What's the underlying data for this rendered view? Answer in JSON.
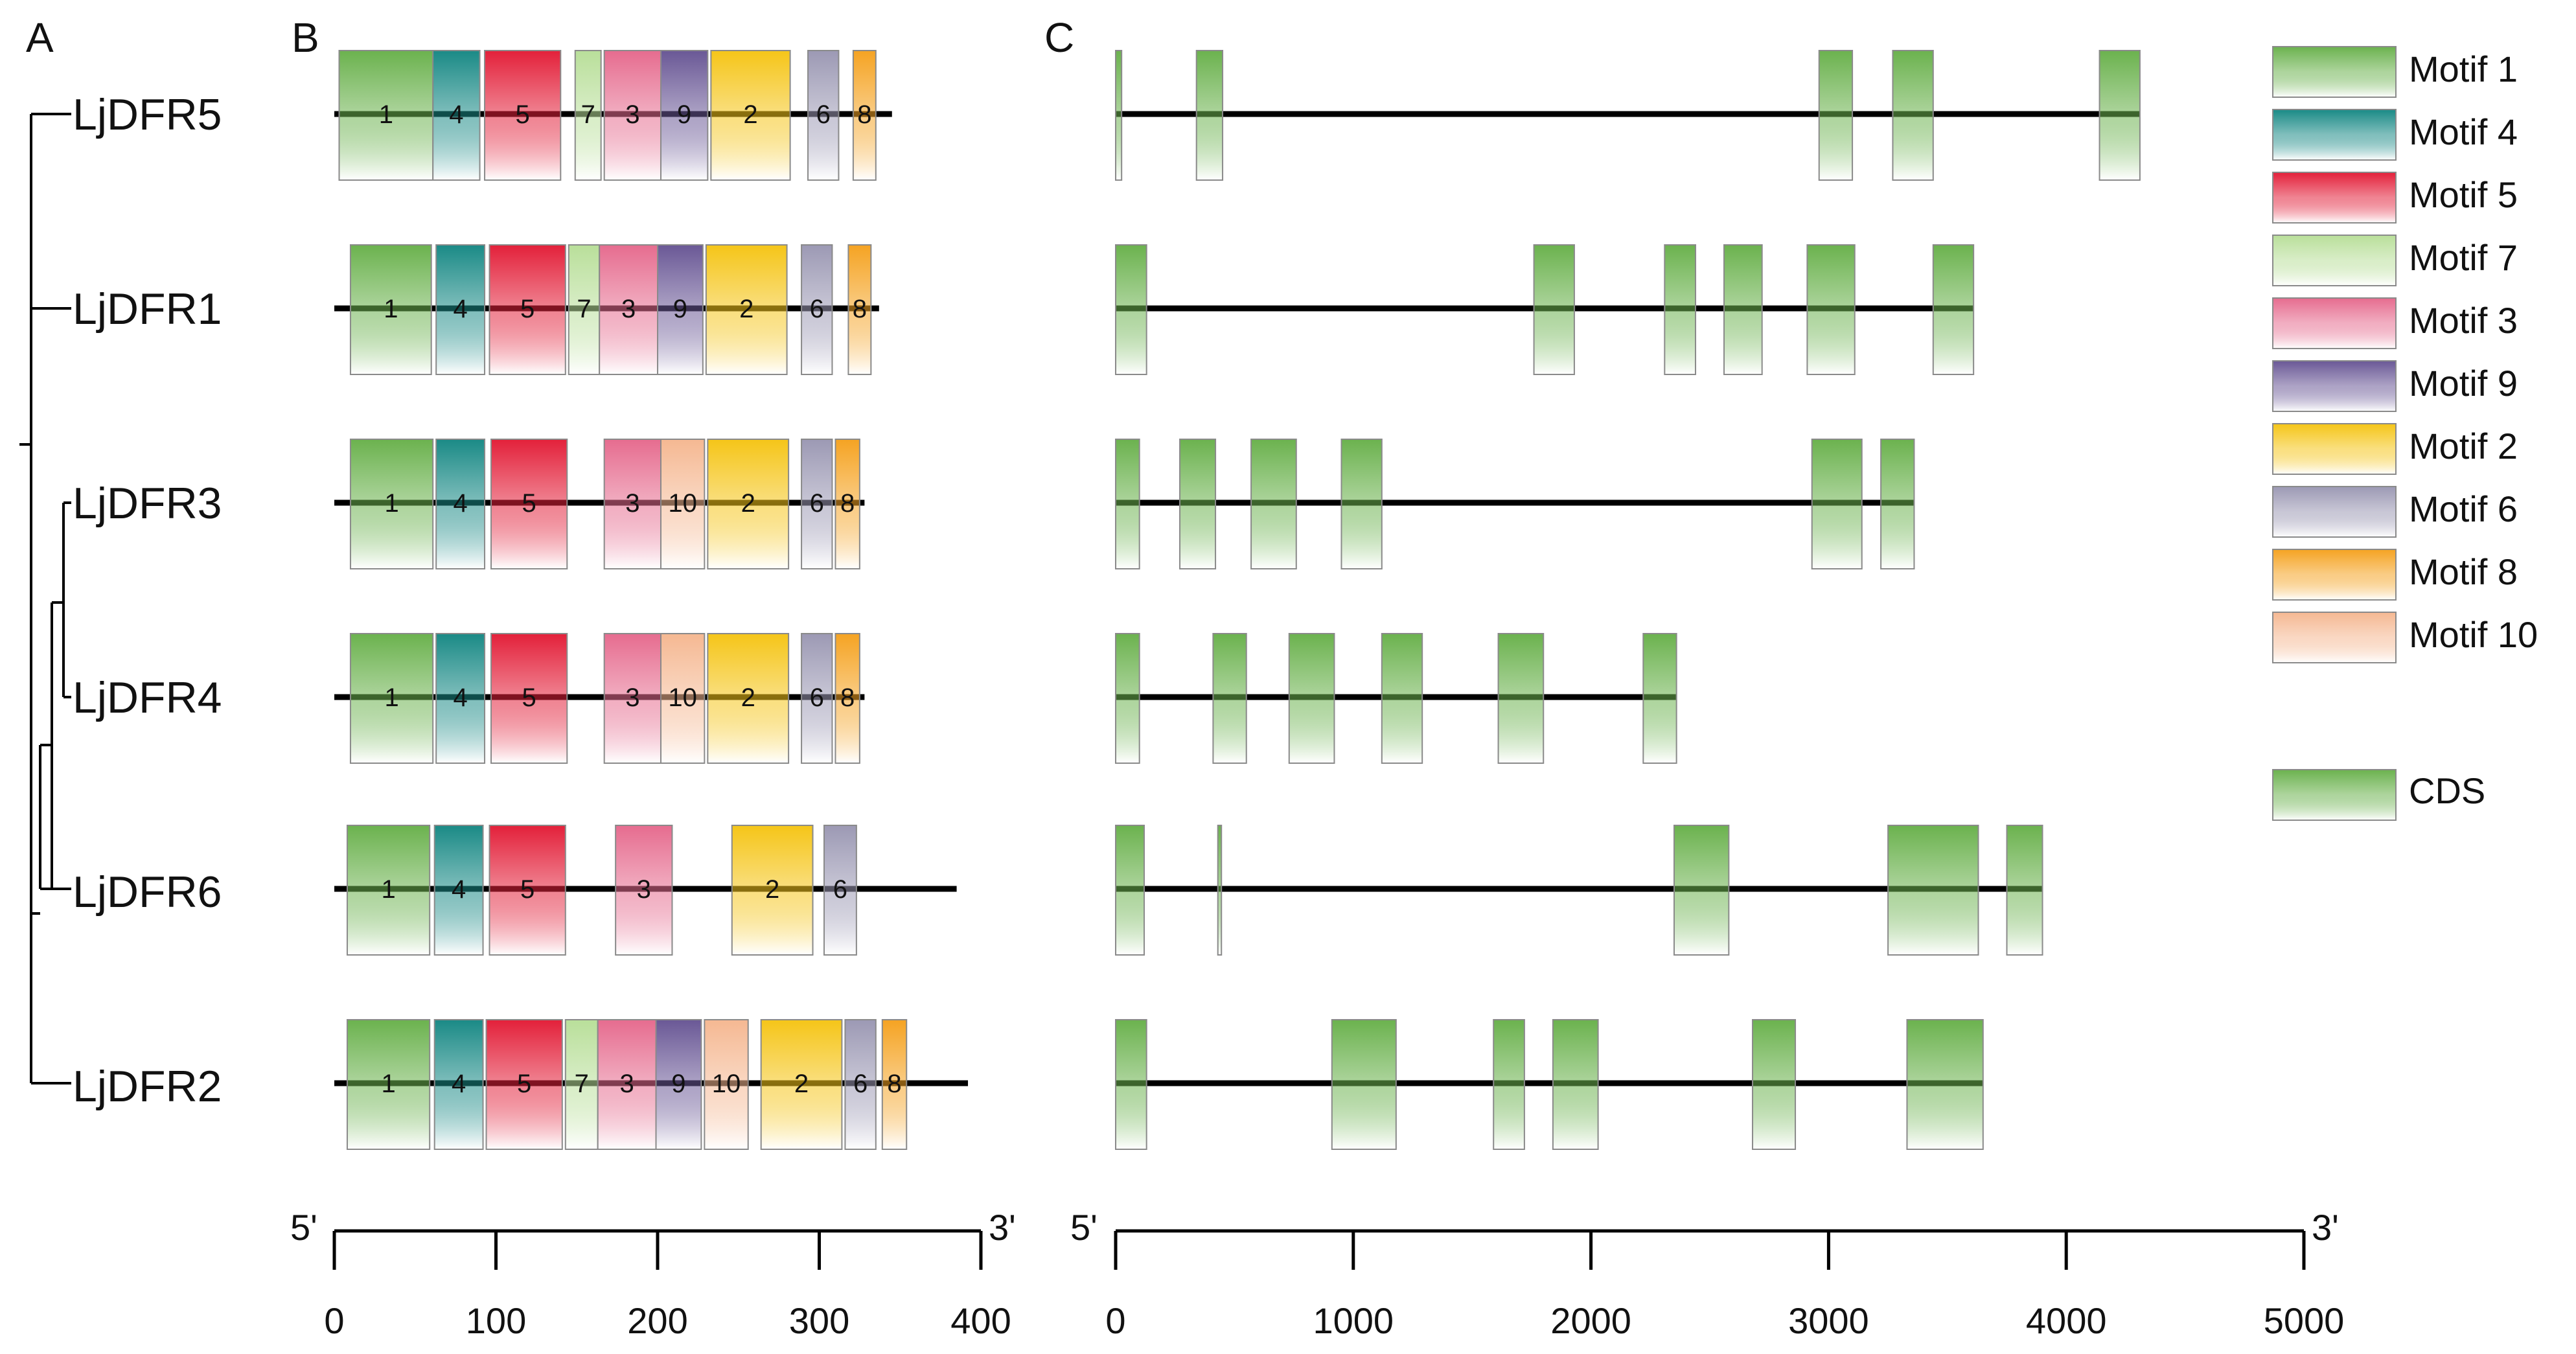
{
  "panels": {
    "tree": "A",
    "motifs": "B",
    "structure": "C"
  },
  "colors": {
    "motif_1": "#6bb24e",
    "motif_4": "#1a8a86",
    "motif_5": "#e3203a",
    "motif_7": "#b9df9a",
    "motif_3": "#e66c8f",
    "motif_9": "#6a5896",
    "motif_2": "#f5c518",
    "motif_6": "#9c99b4",
    "motif_8": "#f5a322",
    "motif_10": "#f5b892",
    "cds": "#6bb24e",
    "line": "#000000"
  },
  "genes": [
    {
      "name": "LjDFR5",
      "protein_length": 345,
      "motifs": [
        {
          "id": 1,
          "start": 3,
          "end": 61
        },
        {
          "id": 4,
          "start": 61,
          "end": 90
        },
        {
          "id": 5,
          "start": 93,
          "end": 140
        },
        {
          "id": 7,
          "start": 149,
          "end": 165
        },
        {
          "id": 3,
          "start": 167,
          "end": 202
        },
        {
          "id": 9,
          "start": 202,
          "end": 231
        },
        {
          "id": 2,
          "start": 233,
          "end": 282
        },
        {
          "id": 6,
          "start": 293,
          "end": 312
        },
        {
          "id": 8,
          "start": 321,
          "end": 335
        }
      ],
      "gene_length": 4310,
      "cds": [
        [
          0,
          25
        ],
        [
          340,
          450
        ],
        [
          2960,
          3100
        ],
        [
          3270,
          3440
        ],
        [
          4140,
          4310
        ]
      ]
    },
    {
      "name": "LjDFR1",
      "protein_length": 337,
      "motifs": [
        {
          "id": 1,
          "start": 10,
          "end": 60
        },
        {
          "id": 4,
          "start": 63,
          "end": 93
        },
        {
          "id": 5,
          "start": 96,
          "end": 143
        },
        {
          "id": 7,
          "start": 145,
          "end": 164
        },
        {
          "id": 3,
          "start": 164,
          "end": 200
        },
        {
          "id": 9,
          "start": 200,
          "end": 228
        },
        {
          "id": 2,
          "start": 230,
          "end": 280
        },
        {
          "id": 6,
          "start": 289,
          "end": 308
        },
        {
          "id": 8,
          "start": 318,
          "end": 332
        }
      ],
      "gene_length": 3610,
      "cds": [
        [
          0,
          130
        ],
        [
          1760,
          1930
        ],
        [
          2310,
          2440
        ],
        [
          2560,
          2720
        ],
        [
          2910,
          3110
        ],
        [
          3440,
          3610
        ]
      ]
    },
    {
      "name": "LjDFR3",
      "protein_length": 328,
      "motifs": [
        {
          "id": 1,
          "start": 10,
          "end": 61
        },
        {
          "id": 4,
          "start": 63,
          "end": 93
        },
        {
          "id": 5,
          "start": 97,
          "end": 144
        },
        {
          "id": 3,
          "start": 167,
          "end": 202
        },
        {
          "id": 10,
          "start": 202,
          "end": 229
        },
        {
          "id": 2,
          "start": 231,
          "end": 281
        },
        {
          "id": 6,
          "start": 289,
          "end": 308
        },
        {
          "id": 8,
          "start": 310,
          "end": 325
        }
      ],
      "gene_length": 3360,
      "cds": [
        [
          0,
          100
        ],
        [
          270,
          420
        ],
        [
          570,
          760
        ],
        [
          950,
          1120
        ],
        [
          2930,
          3140
        ],
        [
          3220,
          3360
        ]
      ]
    },
    {
      "name": "LjDFR4",
      "protein_length": 328,
      "motifs": [
        {
          "id": 1,
          "start": 10,
          "end": 61
        },
        {
          "id": 4,
          "start": 63,
          "end": 93
        },
        {
          "id": 5,
          "start": 97,
          "end": 144
        },
        {
          "id": 3,
          "start": 167,
          "end": 202
        },
        {
          "id": 10,
          "start": 202,
          "end": 229
        },
        {
          "id": 2,
          "start": 231,
          "end": 281
        },
        {
          "id": 6,
          "start": 289,
          "end": 308
        },
        {
          "id": 8,
          "start": 310,
          "end": 325
        }
      ],
      "gene_length": 2360,
      "cds": [
        [
          0,
          100
        ],
        [
          410,
          550
        ],
        [
          730,
          920
        ],
        [
          1120,
          1290
        ],
        [
          1610,
          1800
        ],
        [
          2220,
          2360
        ]
      ]
    },
    {
      "name": "LjDFR6",
      "protein_length": 385,
      "motifs": [
        {
          "id": 1,
          "start": 8,
          "end": 59
        },
        {
          "id": 4,
          "start": 62,
          "end": 92
        },
        {
          "id": 5,
          "start": 96,
          "end": 143
        },
        {
          "id": 3,
          "start": 174,
          "end": 209
        },
        {
          "id": 2,
          "start": 246,
          "end": 296
        },
        {
          "id": 6,
          "start": 303,
          "end": 323
        }
      ],
      "gene_length": 3900,
      "cds": [
        [
          0,
          120
        ],
        [
          430,
          445
        ],
        [
          2350,
          2580
        ],
        [
          3250,
          3630
        ],
        [
          3750,
          3900
        ]
      ]
    },
    {
      "name": "LjDFR2",
      "protein_length": 392,
      "motifs": [
        {
          "id": 1,
          "start": 8,
          "end": 59
        },
        {
          "id": 4,
          "start": 62,
          "end": 92
        },
        {
          "id": 5,
          "start": 94,
          "end": 141
        },
        {
          "id": 7,
          "start": 143,
          "end": 163
        },
        {
          "id": 3,
          "start": 163,
          "end": 199
        },
        {
          "id": 9,
          "start": 199,
          "end": 227
        },
        {
          "id": 10,
          "start": 229,
          "end": 256
        },
        {
          "id": 2,
          "start": 264,
          "end": 314
        },
        {
          "id": 6,
          "start": 316,
          "end": 335
        },
        {
          "id": 8,
          "start": 339,
          "end": 354
        }
      ],
      "gene_length": 3650,
      "cds": [
        [
          0,
          130
        ],
        [
          910,
          1180
        ],
        [
          1590,
          1720
        ],
        [
          1840,
          2030
        ],
        [
          2680,
          2860
        ],
        [
          3330,
          3650
        ]
      ]
    }
  ],
  "legend": [
    {
      "id": 1,
      "label": "Motif 1"
    },
    {
      "id": 4,
      "label": "Motif 4"
    },
    {
      "id": 5,
      "label": "Motif 5"
    },
    {
      "id": 7,
      "label": "Motif 7"
    },
    {
      "id": 3,
      "label": "Motif 3"
    },
    {
      "id": 9,
      "label": "Motif 9"
    },
    {
      "id": 2,
      "label": "Motif 2"
    },
    {
      "id": 6,
      "label": "Motif 6"
    },
    {
      "id": 8,
      "label": "Motif 8"
    },
    {
      "id": 10,
      "label": "Motif 10"
    }
  ],
  "cds_label": "CDS",
  "axes": {
    "motif": {
      "min": 0,
      "max": 400,
      "ticks": [
        "0",
        "100",
        "200",
        "300",
        "400"
      ],
      "left_end": "5'",
      "right_end": "3'"
    },
    "gene": {
      "min": 0,
      "max": 5000,
      "ticks": [
        "0",
        "1000",
        "2000",
        "3000",
        "4000",
        "5000"
      ],
      "left_end": "5'",
      "right_end": "3'"
    }
  }
}
